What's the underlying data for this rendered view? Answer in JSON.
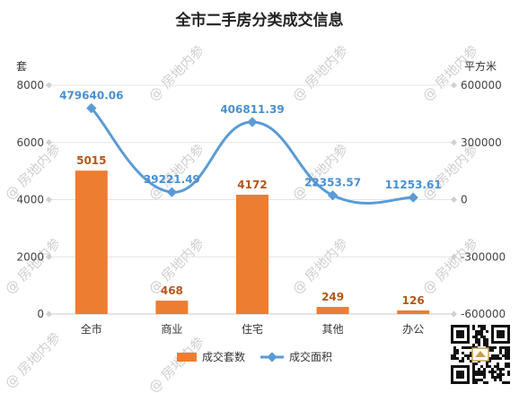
{
  "chart_data": {
    "type": "bar",
    "title": "全市二手房分类成交信息",
    "categories": [
      "全市",
      "商业",
      "住宅",
      "其他",
      "办公"
    ],
    "left_axis": {
      "unit": "套",
      "ticks": [
        0,
        2000,
        4000,
        6000,
        8000
      ],
      "ylim": [
        0,
        8000
      ]
    },
    "right_axis": {
      "unit": "平方米",
      "ticks": [
        "-600000",
        "-300000",
        "0",
        "300000",
        "600000"
      ],
      "ylim": [
        -600000,
        600000
      ]
    },
    "series": [
      {
        "name": "成交套数",
        "type": "bar",
        "axis": "left",
        "color": "#ed7d31",
        "values": [
          5015,
          468,
          4172,
          249,
          126
        ],
        "labels": [
          "5015",
          "468",
          "4172",
          "249",
          "126"
        ]
      },
      {
        "name": "成交面积",
        "type": "line",
        "axis": "right",
        "color": "#5b9bd5",
        "values": [
          479640.06,
          39221.49,
          406811.39,
          22353.57,
          11253.61
        ],
        "labels": [
          "479640.06",
          "39221.49",
          "406811.39",
          "22353.57",
          "11253.61"
        ]
      }
    ],
    "grid": true,
    "legend_position": "bottom"
  },
  "watermark": "@ 房地内参",
  "qr_icon": "qr-code-icon"
}
